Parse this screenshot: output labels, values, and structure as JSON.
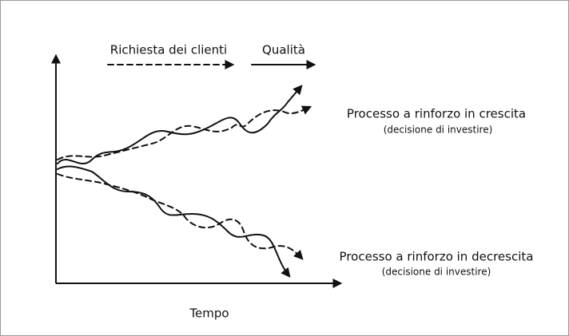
{
  "legend": {
    "items": [
      {
        "label": "Richiesta dei clienti"
      },
      {
        "label": "Qualità"
      }
    ]
  },
  "annotations": [
    {
      "title": "Processo a rinforzo in crescita",
      "subtitle": "(decisione di investire)"
    },
    {
      "title": "Processo a rinforzo in decrescita",
      "subtitle": "(decisione di investire)"
    }
  ],
  "axis": {
    "x_label": "Tempo"
  }
}
